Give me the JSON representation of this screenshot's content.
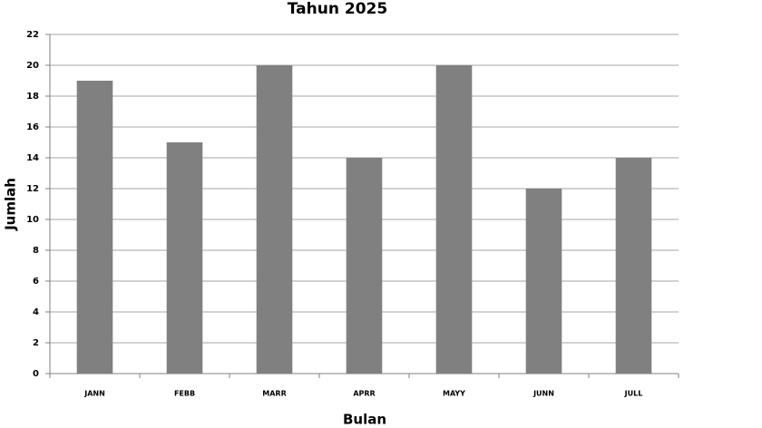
{
  "chart_data": {
    "type": "bar",
    "title": "Tahun 2025",
    "x_label": "Bulan",
    "y_label": "Jumlah",
    "categories": [
      "JANN",
      "FEBB",
      "MARR",
      "APRR",
      "MAYY",
      "JUNN",
      "JULL"
    ],
    "values": [
      19,
      15,
      20,
      14,
      20,
      12,
      14
    ],
    "color": "#808080",
    "ylim": [
      0,
      22
    ],
    "yticks": [
      0,
      2,
      4,
      6,
      8,
      10,
      12,
      14,
      16,
      18,
      20,
      22
    ],
    "grid": true
  }
}
